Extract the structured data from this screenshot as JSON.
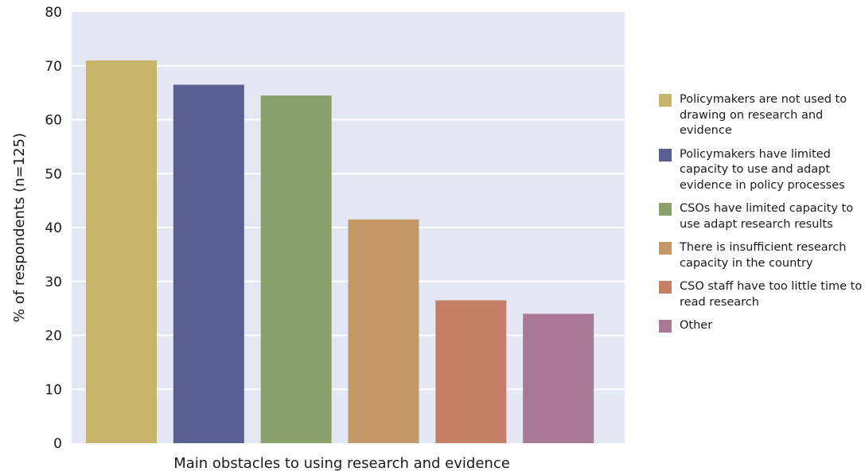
{
  "chart_data": {
    "type": "bar",
    "xlabel": "Main obstacles to using research and evidence",
    "ylabel": "% of respondents (n=125)",
    "ylim": [
      0,
      80
    ],
    "yticks": [
      0,
      10,
      20,
      30,
      40,
      50,
      60,
      70,
      80
    ],
    "grid": true,
    "legend_position": "right",
    "plot_background": "#e3e7f3",
    "categories": [
      "Policymakers are not used to drawing on research and evidence",
      "Policymakers have limited capacity to use and adapt evidence in policy processes",
      "CSOs have limited capacity to use adapt research results",
      "There is insufficient research capacity in the country",
      "CSO staff have too little time to read research",
      "Other"
    ],
    "values": [
      71,
      66.5,
      64.5,
      41.5,
      26.5,
      24
    ],
    "colors": [
      "#c7b46b",
      "#5a5f91",
      "#8aa06b",
      "#c39866",
      "#c47f64",
      "#a87894"
    ]
  },
  "legend": {
    "items": [
      {
        "label": "Policymakers are not used to drawing on research and evidence",
        "color": "#c7b46b"
      },
      {
        "label": "Policymakers have limited capacity to use and adapt evidence in policy processes",
        "color": "#5a5f91"
      },
      {
        "label": "CSOs have limited capacity to use adapt research results",
        "color": "#8aa06b"
      },
      {
        "label": "There is insufficient research capacity in the country",
        "color": "#c39866"
      },
      {
        "label": "CSO staff have too little time to read research",
        "color": "#c47f64"
      },
      {
        "label": "Other",
        "color": "#a87894"
      }
    ]
  }
}
